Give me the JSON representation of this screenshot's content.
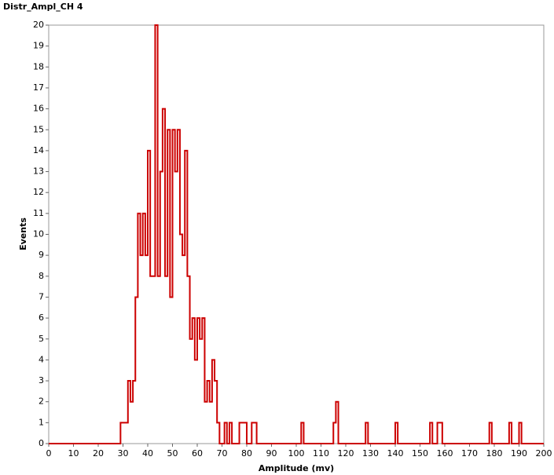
{
  "chart_data": {
    "type": "step",
    "title": "Distr_Ampl_CH 4",
    "xlabel": "Amplitude (mv)",
    "ylabel": "Events",
    "x": [
      0,
      29,
      32,
      33,
      34,
      35,
      36,
      37,
      38,
      39,
      40,
      41,
      43,
      44,
      45,
      46,
      47,
      48,
      49,
      50,
      51,
      52,
      53,
      54,
      55,
      56,
      57,
      58,
      59,
      60,
      61,
      62,
      63,
      64,
      65,
      66,
      67,
      68,
      69,
      71,
      72,
      73,
      74,
      77,
      80,
      82,
      84,
      102,
      103,
      115,
      116,
      117,
      128,
      129,
      140,
      141,
      154,
      155,
      157,
      159,
      178,
      179,
      186,
      187,
      190,
      191,
      200
    ],
    "series": [
      {
        "color": "#cc0000",
        "values": [
          0,
          1,
          3,
          2,
          3,
          7,
          11,
          9,
          11,
          9,
          14,
          8,
          20,
          8,
          13,
          16,
          8,
          15,
          7,
          15,
          13,
          15,
          10,
          9,
          14,
          8,
          5,
          6,
          4,
          6,
          5,
          6,
          2,
          3,
          2,
          4,
          3,
          1,
          0,
          1,
          0,
          1,
          0,
          1,
          0,
          1,
          0,
          1,
          0,
          1,
          2,
          0,
          1,
          0,
          1,
          0,
          1,
          0,
          1,
          0,
          1,
          0,
          1,
          0,
          1,
          0,
          0
        ]
      }
    ],
    "xlim": [
      0,
      200
    ],
    "ylim": [
      0,
      20
    ],
    "xticks": [
      0,
      10,
      20,
      30,
      40,
      50,
      60,
      70,
      80,
      90,
      100,
      110,
      120,
      130,
      140,
      150,
      160,
      170,
      180,
      190,
      200
    ],
    "yticks": [
      0,
      1,
      2,
      3,
      4,
      5,
      6,
      7,
      8,
      9,
      10,
      11,
      12,
      13,
      14,
      15,
      16,
      17,
      18,
      19,
      20
    ]
  }
}
